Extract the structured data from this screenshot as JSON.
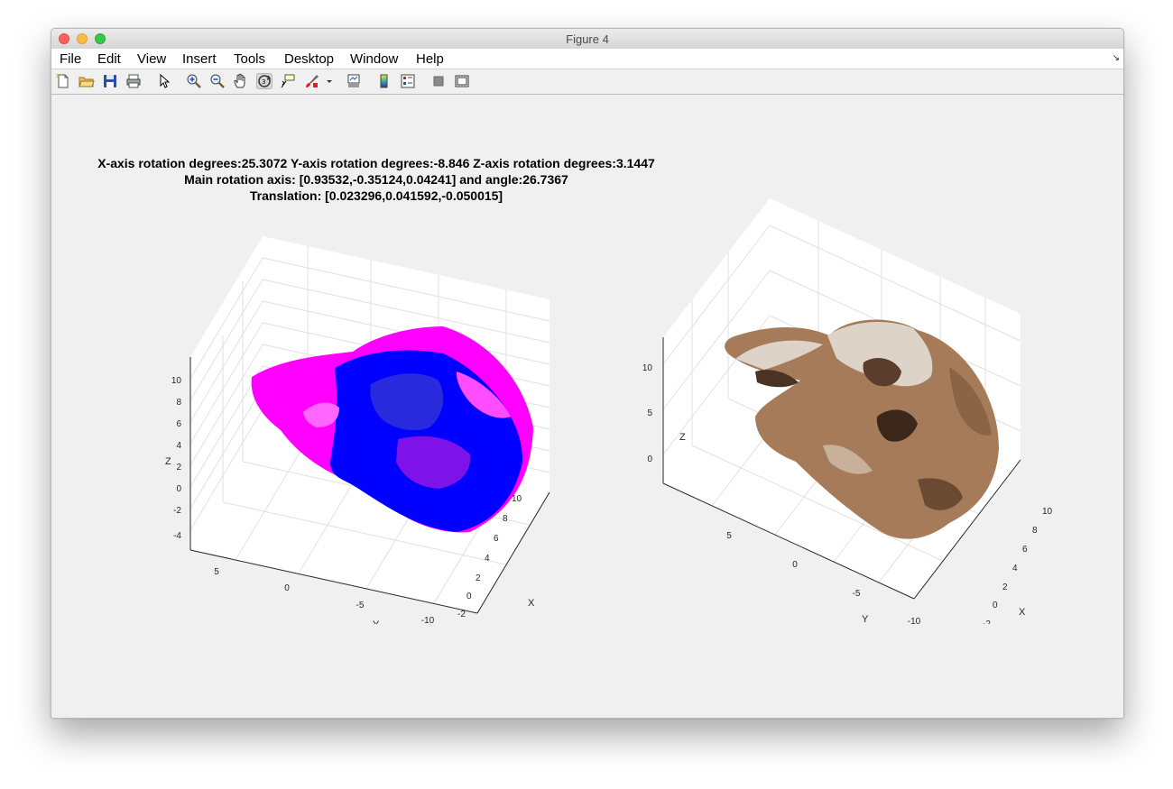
{
  "window": {
    "title": "Figure 4"
  },
  "menu": [
    "File",
    "Edit",
    "View",
    "Insert",
    "Tools",
    "Desktop",
    "Window",
    "Help"
  ],
  "toolbar": [
    {
      "name": "new-figure-icon"
    },
    {
      "name": "open-file-icon"
    },
    {
      "name": "save-icon"
    },
    {
      "name": "print-icon"
    },
    {
      "name": "pointer-icon"
    },
    {
      "name": "zoom-in-icon"
    },
    {
      "name": "zoom-out-icon"
    },
    {
      "name": "pan-hand-icon"
    },
    {
      "name": "rotate-3d-icon",
      "pressed": true
    },
    {
      "name": "data-cursor-icon"
    },
    {
      "name": "brush-icon"
    },
    {
      "name": "brush-dropdown-icon"
    },
    {
      "name": "link-plot-icon"
    },
    {
      "name": "colorbar-icon"
    },
    {
      "name": "legend-icon"
    },
    {
      "name": "hide-plot-tools-icon"
    },
    {
      "name": "show-plot-tools-icon"
    }
  ],
  "figure": {
    "title_lines": [
      "X-axis rotation degrees:25.3072  Y-axis rotation degrees:-8.846  Z-axis rotation degrees:3.1447",
      "Main rotation axis: [0.93532,-0.35124,0.04241] and angle:26.7367",
      "Translation: [0.023296,0.041592,-0.050015]"
    ]
  },
  "plots": {
    "left": {
      "z_ticks": [
        "10",
        "8",
        "6",
        "4",
        "2",
        "0",
        "-2",
        "-4"
      ],
      "y_ticks": [
        "5",
        "0",
        "-5",
        "-10"
      ],
      "x_ticks": [
        "10",
        "8",
        "6",
        "4",
        "2",
        "0",
        "-2"
      ],
      "xlabel": "X",
      "ylabel": "Y",
      "zlabel": "Z",
      "series_colors": [
        "#ff00ff",
        "#0000ff"
      ]
    },
    "right": {
      "z_ticks": [
        "10",
        "5",
        "0"
      ],
      "y_ticks": [
        "5",
        "0",
        "-5",
        "-10"
      ],
      "x_ticks": [
        "10",
        "8",
        "6",
        "4",
        "2",
        "0",
        "-2"
      ],
      "xlabel": "X",
      "ylabel": "Y",
      "zlabel": "Z",
      "texture_colors": [
        "#c9b09a",
        "#a47a5a",
        "#e6ddd3",
        "#5a3d2a",
        "#8b6446"
      ]
    }
  }
}
